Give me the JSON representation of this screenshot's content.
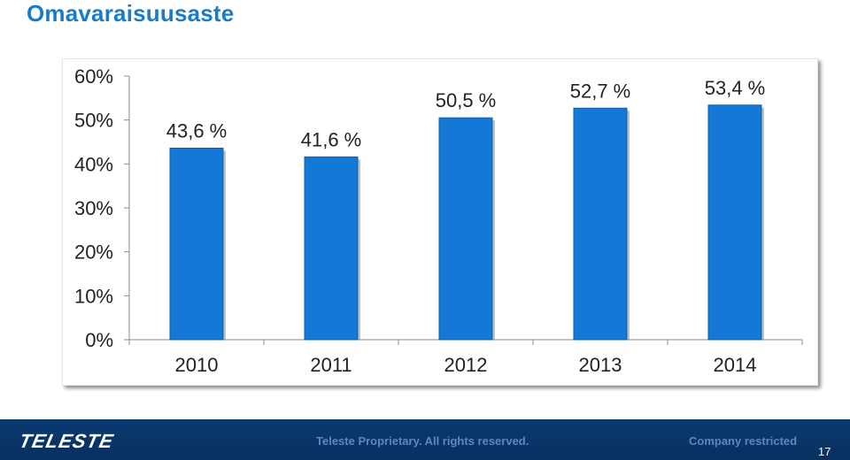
{
  "title": "Omavaraisuusaste",
  "chart_data": {
    "type": "bar",
    "categories": [
      "2010",
      "2011",
      "2012",
      "2013",
      "2014"
    ],
    "values": [
      43.6,
      41.6,
      50.5,
      52.7,
      53.4
    ],
    "data_labels": [
      "43,6 %",
      "41,6 %",
      "50,5 %",
      "52,7 %",
      "53,4 %"
    ],
    "yticks": [
      0,
      10,
      20,
      30,
      40,
      50,
      60
    ],
    "ytick_labels": [
      "0%",
      "10%",
      "20%",
      "30%",
      "40%",
      "50%",
      "60%"
    ],
    "ylim": [
      0,
      60
    ],
    "grid": false,
    "bar_color": "#1479d6"
  },
  "footer": {
    "logo": "TELESTE",
    "proprietary": "Teleste Proprietary. All rights reserved.",
    "classification": "Company restricted",
    "page_number": "17"
  }
}
